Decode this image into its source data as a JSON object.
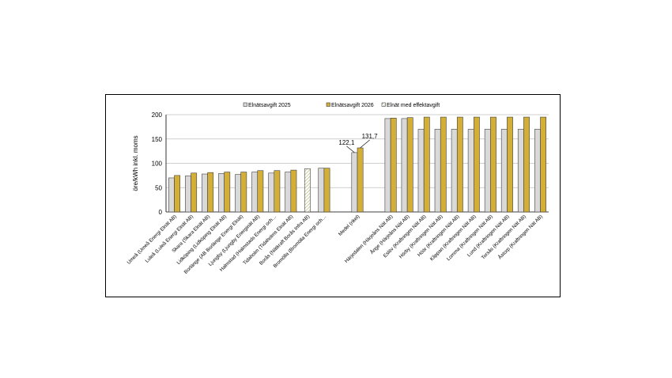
{
  "chart_data": {
    "type": "bar",
    "ylabel": "öre/kWh inkl. moms",
    "ylim": [
      0,
      200
    ],
    "yticks": [
      "0",
      "50",
      "100",
      "150",
      "200"
    ],
    "grid": true,
    "legend_position": "top",
    "categories": [
      "Umeå (Umeå Energi Elnät AB)",
      "Luleå (Luleå Energi Elnät AB)",
      "Skara (Skara Elnät AB)",
      "Lidköping (Lidköping Elnät AB)",
      "Borlänge (AB Borlänge Energi Elnät)",
      "Ljungby (Ljungby Energinät AB)",
      "Halmstad (Halmstads Energi och…",
      "Tidaholm (Tidaholms Elnät AB)",
      "Borås (Nätkraft Borås Infra AB)",
      "Bromölla (Bromölla Energi och…",
      "",
      "Medel (rikel)",
      "",
      "Härjedalen (Härjeåns Nät AB)",
      "Ånge (Härjeåns Nät AB)",
      "Eslöv (Kraftringen Nät AB)",
      "Hörby (Kraftringen Nät AB)",
      "Höör (Kraftringen Nät AB)",
      "Klippan (Kraftringen Nät AB)",
      "Lomma (Kraftringen Nät AB)",
      "Lund (Kraftringen Nät AB)",
      "Torsås (Kraftringen Nät AB)",
      "Åstorp (Kraftringen Nät AB)"
    ],
    "series": [
      {
        "name": "Elnätsavgift 2025",
        "color": "#d9d9d9",
        "values": [
          70,
          74,
          78,
          79,
          77,
          82,
          80,
          82,
          null,
          90,
          null,
          122.1,
          null,
          192,
          192,
          170,
          170,
          170,
          170,
          170,
          170,
          170,
          170
        ]
      },
      {
        "name": "Elnätsavgift 2026",
        "color": "#d4af37",
        "values": [
          75,
          80,
          81,
          82,
          82,
          85,
          85,
          86,
          null,
          90,
          null,
          131.7,
          null,
          193,
          194,
          195,
          195,
          195,
          195,
          195,
          195,
          195,
          195
        ]
      },
      {
        "name": "Elnät med effektavgift",
        "color": "#ffffff",
        "pattern": "hatched",
        "values": [
          null,
          null,
          null,
          null,
          null,
          null,
          null,
          null,
          89,
          null,
          null,
          null,
          null,
          null,
          null,
          null,
          null,
          null,
          null,
          null,
          null,
          null,
          null
        ]
      }
    ],
    "data_labels": [
      {
        "category": "Medel (rikel)",
        "series": "Elnätsavgift 2025",
        "text": "122,1"
      },
      {
        "category": "Medel (rikel)",
        "series": "Elnätsavgift 2026",
        "text": "131,7"
      }
    ]
  }
}
